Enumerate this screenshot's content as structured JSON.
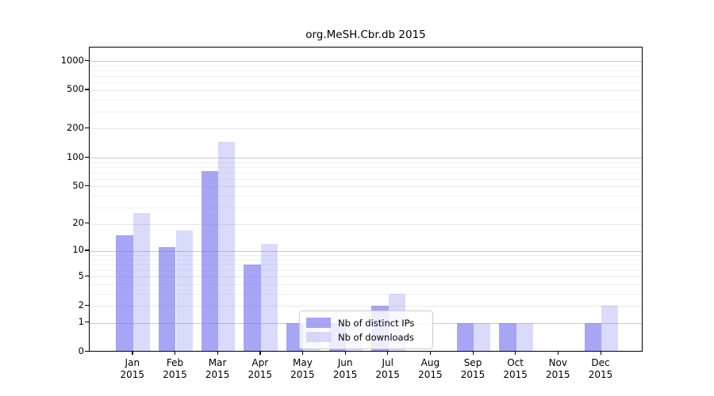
{
  "chart_data": {
    "type": "bar",
    "title": "org.MeSH.Cbr.db 2015",
    "categories": [
      {
        "month": "Jan",
        "year": "2015"
      },
      {
        "month": "Feb",
        "year": "2015"
      },
      {
        "month": "Mar",
        "year": "2015"
      },
      {
        "month": "Apr",
        "year": "2015"
      },
      {
        "month": "May",
        "year": "2015"
      },
      {
        "month": "Jun",
        "year": "2015"
      },
      {
        "month": "Jul",
        "year": "2015"
      },
      {
        "month": "Aug",
        "year": "2015"
      },
      {
        "month": "Sep",
        "year": "2015"
      },
      {
        "month": "Oct",
        "year": "2015"
      },
      {
        "month": "Nov",
        "year": "2015"
      },
      {
        "month": "Dec",
        "year": "2015"
      }
    ],
    "series": [
      {
        "name": "Nb of distinct IPs",
        "color": "rgba(119,119,238,0.65)",
        "values": [
          15,
          11,
          72,
          7,
          1,
          1,
          2,
          0,
          1,
          1,
          0,
          1
        ]
      },
      {
        "name": "Nb of downloads",
        "color": "rgba(119,119,238,0.27)",
        "values": [
          26,
          17,
          145,
          12,
          1,
          1,
          3,
          0,
          1,
          1,
          0,
          2
        ]
      }
    ],
    "xlabel": "",
    "ylabel": "",
    "yscale": "log1p",
    "ylim": [
      0,
      1400
    ],
    "yticks": [
      0,
      1,
      2,
      5,
      10,
      20,
      50,
      100,
      200,
      500,
      1000
    ],
    "decade_gridlines": [
      1,
      10,
      100,
      1000
    ],
    "minor_gridlines": [
      3,
      4,
      6,
      7,
      8,
      9,
      30,
      40,
      60,
      70,
      80,
      90,
      300,
      400,
      600,
      700,
      800,
      900
    ],
    "grid": "on",
    "legend_position": "lower-center"
  },
  "colors": {
    "distinct_ips_bar": "rgba(119,119,238,0.65)",
    "downloads_bar": "rgba(119,119,238,0.27)",
    "axis": "#000000",
    "major_grid": "#c9c9c9",
    "minor_grid": "#f0f0f0"
  }
}
